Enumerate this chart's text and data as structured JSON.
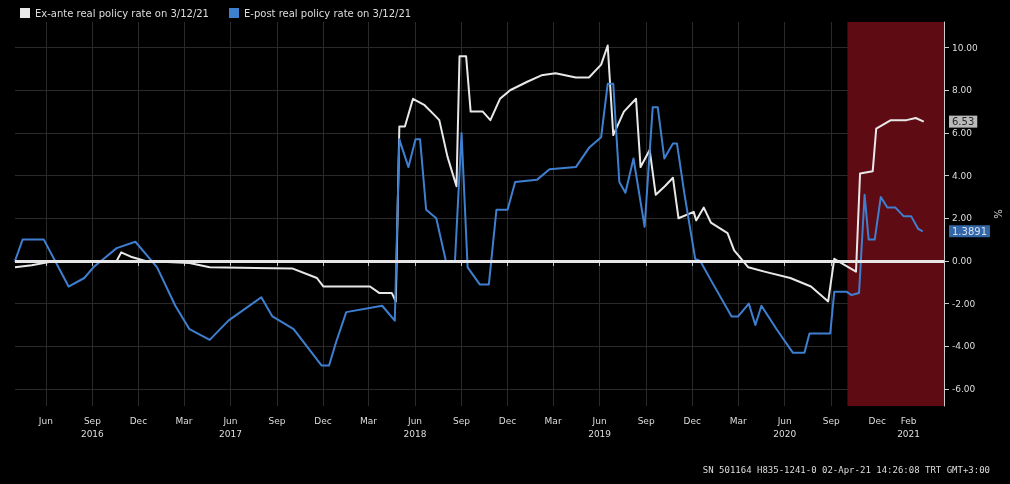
{
  "chart_data": {
    "type": "line",
    "ylabel": "%",
    "legend": "top left",
    "grid": true,
    "marker": "none",
    "line_style": "solid",
    "xlim": [
      "2016-04-01",
      "2021-04-12"
    ],
    "ylim": [
      -6.8,
      11.2
    ],
    "xticks": [
      {
        "value": "2016-06-01",
        "label": "Jun"
      },
      {
        "value": "2016-09-01",
        "label": "Sep\n2016"
      },
      {
        "value": "2016-12-01",
        "label": "Dec"
      },
      {
        "value": "2017-03-01",
        "label": "Mar"
      },
      {
        "value": "2017-06-01",
        "label": "Jun\n2017"
      },
      {
        "value": "2017-09-01",
        "label": "Sep"
      },
      {
        "value": "2017-12-01",
        "label": "Dec"
      },
      {
        "value": "2018-03-01",
        "label": "Mar"
      },
      {
        "value": "2018-06-01",
        "label": "Jun\n2018"
      },
      {
        "value": "2018-09-01",
        "label": "Sep"
      },
      {
        "value": "2018-12-01",
        "label": "Dec"
      },
      {
        "value": "2019-03-01",
        "label": "Mar"
      },
      {
        "value": "2019-06-01",
        "label": "Jun\n2019"
      },
      {
        "value": "2019-09-01",
        "label": "Sep"
      },
      {
        "value": "2019-12-01",
        "label": "Dec"
      },
      {
        "value": "2020-03-01",
        "label": "Mar"
      },
      {
        "value": "2020-06-01",
        "label": "Jun\n2020"
      },
      {
        "value": "2020-09-01",
        "label": "Sep"
      },
      {
        "value": "2020-12-01",
        "label": "Dec"
      },
      {
        "value": "2021-02-01",
        "label": "Feb\n2021"
      }
    ],
    "yticks": [
      {
        "value": -6,
        "label": "-6.00"
      },
      {
        "value": -4,
        "label": "-4.00"
      },
      {
        "value": -2,
        "label": "-2.00"
      },
      {
        "value": 0,
        "label": "0.00"
      },
      {
        "value": 2,
        "label": "2.00"
      },
      {
        "value": 4,
        "label": "4.00"
      },
      {
        "value": 6,
        "label": "6.00"
      },
      {
        "value": 8,
        "label": "8.00"
      },
      {
        "value": 10,
        "label": "10.00"
      }
    ],
    "ref_lines": [
      {
        "axis": "y",
        "value": 0,
        "label": null,
        "color": "#e6e6e6"
      }
    ],
    "bands": [
      {
        "axis": "x",
        "from": "2020-10-03",
        "to": "2021-04-12",
        "label": null,
        "color": "#5e0b14"
      }
    ],
    "series": [
      {
        "name": "Ex-ante real policy rate on 3/12/21",
        "color": "#e8e8e8",
        "x": [
          "2016-04-01",
          "2016-05-04",
          "2016-06-18",
          "2016-10-19",
          "2016-10-28",
          "2016-11-16",
          "2016-12-15",
          "2017-03-12",
          "2017-04-21",
          "2017-10-01",
          "2017-11-19",
          "2017-12-02",
          "2018-03-04",
          "2018-03-22",
          "2018-04-16",
          "2018-04-24",
          "2018-05-01",
          "2018-05-12",
          "2018-05-28",
          "2018-06-20",
          "2018-07-11",
          "2018-07-19",
          "2018-08-04",
          "2018-08-22",
          "2018-08-28",
          "2018-09-10",
          "2018-09-19",
          "2018-10-13",
          "2018-10-28",
          "2018-11-16",
          "2018-12-06",
          "2019-01-09",
          "2019-02-06",
          "2019-03-06",
          "2019-04-15",
          "2019-05-11",
          "2019-06-04",
          "2019-06-17",
          "2019-06-28",
          "2019-07-19",
          "2019-08-12",
          "2019-08-21",
          "2019-09-08",
          "2019-09-20",
          "2019-10-08",
          "2019-10-24",
          "2019-11-04",
          "2019-12-04",
          "2019-12-09",
          "2019-12-24",
          "2020-01-07",
          "2020-02-09",
          "2020-02-22",
          "2020-03-21",
          "2020-04-22",
          "2020-06-12",
          "2020-07-23",
          "2020-08-26",
          "2020-09-07",
          "2020-09-28",
          "2020-10-20",
          "2020-10-28",
          "2020-11-22",
          "2020-11-29",
          "2020-12-28",
          "2021-01-28",
          "2021-02-15",
          "2021-03-03"
        ],
        "values": [
          -0.3,
          -0.2,
          0,
          0,
          0.4,
          0.2,
          0,
          -0.1,
          -0.3,
          -0.35,
          -0.8,
          -1.2,
          -1.2,
          -1.5,
          -1.5,
          -1.9,
          6.3,
          6.3,
          7.6,
          7.3,
          6.8,
          6.6,
          4.9,
          3.5,
          9.6,
          9.6,
          7.0,
          7.0,
          6.6,
          7.6,
          8.0,
          8.4,
          8.7,
          8.8,
          8.6,
          8.6,
          9.2,
          10.1,
          5.9,
          7.0,
          7.6,
          4.4,
          5.2,
          3.1,
          3.5,
          3.9,
          2.0,
          2.3,
          1.9,
          2.5,
          1.8,
          1.3,
          0.5,
          -0.3,
          -0.5,
          -0.8,
          -1.2,
          -1.9,
          0.1,
          -0.2,
          -0.5,
          4.1,
          4.2,
          6.2,
          6.6,
          6.6,
          6.7,
          6.53
        ]
      },
      {
        "name": "E-post real policy rate on 3/12/21",
        "color": "#3f7fd0",
        "x": [
          "2016-04-01",
          "2016-04-16",
          "2016-05-28",
          "2016-07-16",
          "2016-08-16",
          "2016-09-03",
          "2016-10-19",
          "2016-11-25",
          "2017-01-07",
          "2017-02-12",
          "2017-03-12",
          "2017-04-21",
          "2017-05-28",
          "2017-08-01",
          "2017-08-23",
          "2017-10-04",
          "2017-11-28",
          "2017-12-13",
          "2017-12-27",
          "2018-01-16",
          "2018-03-28",
          "2018-04-22",
          "2018-05-01",
          "2018-05-19",
          "2018-06-02",
          "2018-06-11",
          "2018-06-23",
          "2018-07-13",
          "2018-08-01",
          "2018-08-19",
          "2018-09-01",
          "2018-09-13",
          "2018-10-07",
          "2018-10-25",
          "2018-11-09",
          "2018-12-01",
          "2018-12-16",
          "2019-01-28",
          "2019-02-22",
          "2019-04-15",
          "2019-05-11",
          "2019-06-04",
          "2019-06-17",
          "2019-06-28",
          "2019-07-10",
          "2019-07-22",
          "2019-08-07",
          "2019-08-29",
          "2019-09-14",
          "2019-09-24",
          "2019-10-07",
          "2019-10-24",
          "2019-11-01",
          "2019-11-16",
          "2019-12-07",
          "2019-12-17",
          "2020-01-07",
          "2020-02-17",
          "2020-03-01",
          "2020-03-22",
          "2020-04-04",
          "2020-04-16",
          "2020-05-16",
          "2020-06-17",
          "2020-07-10",
          "2020-07-20",
          "2020-08-30",
          "2020-09-07",
          "2020-10-02",
          "2020-10-11",
          "2020-10-26",
          "2020-11-06",
          "2020-11-14",
          "2020-11-26",
          "2020-12-08",
          "2020-12-21",
          "2021-01-06",
          "2021-01-22",
          "2021-02-06",
          "2021-02-20",
          "2021-03-01"
        ],
        "values": [
          0,
          1.0,
          1.0,
          -1.2,
          -0.8,
          -0.3,
          0.6,
          0.9,
          -0.3,
          -2.1,
          -3.2,
          -3.7,
          -2.8,
          -1.7,
          -2.6,
          -3.2,
          -4.9,
          -4.9,
          -3.8,
          -2.4,
          -2.1,
          -2.8,
          5.7,
          4.4,
          5.7,
          5.7,
          2.4,
          2.0,
          0,
          0,
          6.0,
          -0.3,
          -1.1,
          -1.1,
          2.4,
          2.4,
          3.7,
          3.8,
          4.3,
          4.4,
          5.3,
          5.8,
          8.3,
          8.3,
          3.7,
          3.2,
          4.8,
          1.6,
          7.2,
          7.2,
          4.8,
          5.5,
          5.5,
          3.1,
          0.1,
          0,
          -0.9,
          -2.6,
          -2.6,
          -2.0,
          -3.0,
          -2.1,
          -3.2,
          -4.3,
          -4.3,
          -3.4,
          -3.4,
          -1.45,
          -1.45,
          -1.6,
          -1.5,
          3.1,
          1.0,
          1.0,
          3.0,
          2.5,
          2.5,
          2.1,
          2.1,
          1.5,
          1.3891
        ]
      }
    ],
    "annotations": [
      {
        "text": "6.53",
        "x": "2021-04-12",
        "y": 6.53
      },
      {
        "text": "1.3891",
        "x": "2021-04-12",
        "y": 1.3891
      },
      "SN 501164 H835-1241-0 02-Apr-21 14:26:08 TRT GMT+3:00"
    ]
  }
}
